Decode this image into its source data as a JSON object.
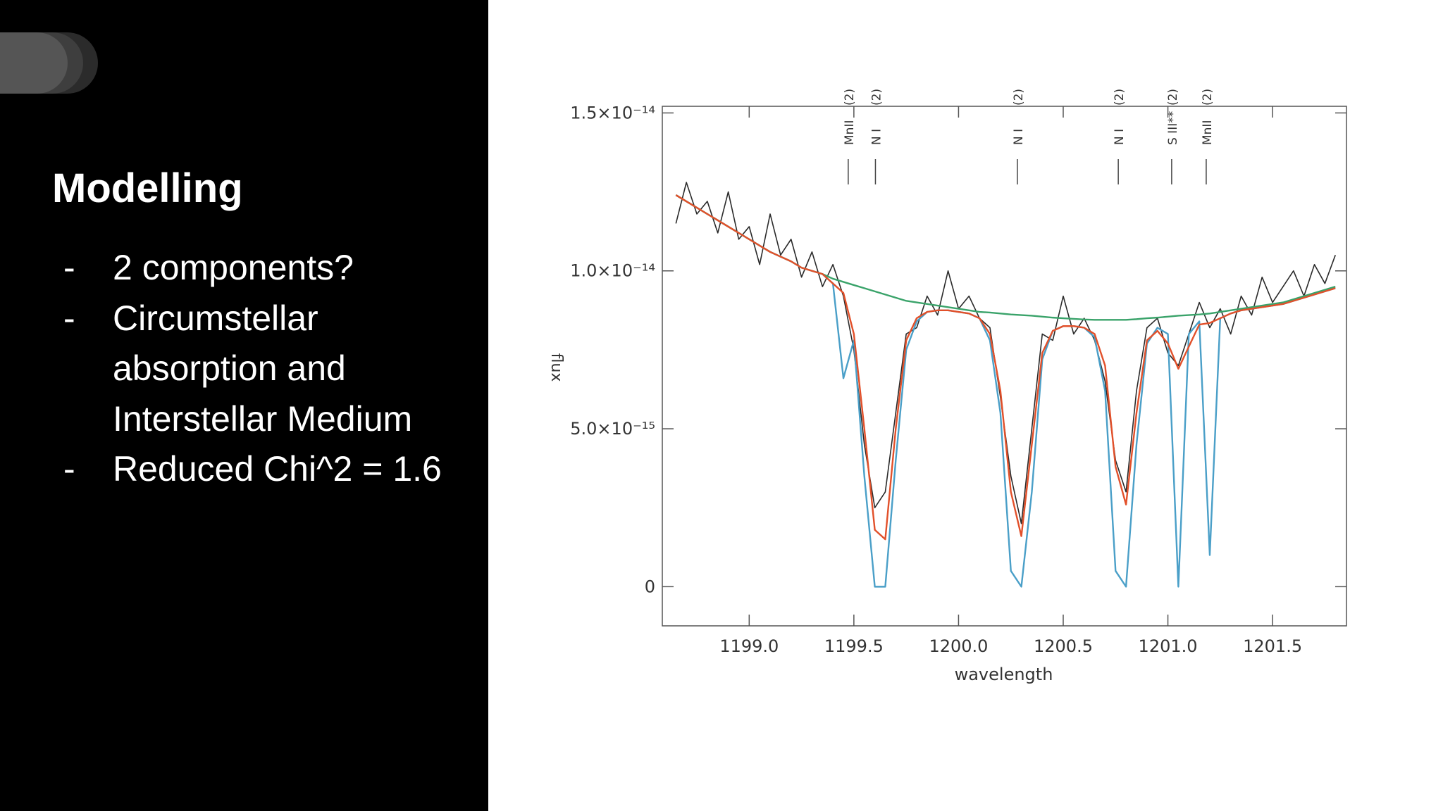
{
  "slide": {
    "title": "Modelling",
    "marker": "-",
    "bullets": [
      "2 components?",
      "Circumstellar absorption and Interstellar Medium",
      "Reduced Chi^2 = 1.6"
    ]
  },
  "chart_data": {
    "type": "line",
    "xlabel": "wavelength",
    "ylabel": "flux",
    "xlim": [
      1198.585,
      1201.853
    ],
    "ylim": [
      -1.24e-15,
      1.521e-14
    ],
    "xticks": [
      {
        "value": 1199.0,
        "label": "1199.0"
      },
      {
        "value": 1199.5,
        "label": "1199.5"
      },
      {
        "value": 1200.0,
        "label": "1200.0"
      },
      {
        "value": 1200.5,
        "label": "1200.5"
      },
      {
        "value": 1201.0,
        "label": "1201.0"
      },
      {
        "value": 1201.5,
        "label": "1201.5"
      }
    ],
    "yticks": [
      0,
      {
        "value": 5e-15,
        "label": "5.0×10⁻¹⁵"
      },
      {
        "value": 1e-14,
        "label": "1.0×10⁻¹⁴"
      },
      {
        "value": 1.5e-14,
        "label": "1.5×10⁻¹⁴"
      }
    ],
    "line_ids": [
      {
        "x": 1199.473,
        "label": "MnII",
        "note": "(2)"
      },
      {
        "x": 1199.603,
        "label": "N I",
        "note": "(2)"
      },
      {
        "x": 1200.281,
        "label": "N I",
        "note": "(2)"
      },
      {
        "x": 1200.763,
        "label": "N I",
        "note": "(2)"
      },
      {
        "x": 1201.018,
        "label": "S III**",
        "note": "(2)"
      },
      {
        "x": 1201.183,
        "label": "MnII",
        "note": "(2)"
      }
    ],
    "x": [
      1198.65,
      1198.7,
      1198.75,
      1198.8,
      1198.85,
      1198.9,
      1198.95,
      1199.0,
      1199.05,
      1199.1,
      1199.15,
      1199.2,
      1199.25,
      1199.3,
      1199.35,
      1199.4,
      1199.45,
      1199.5,
      1199.55,
      1199.6,
      1199.65,
      1199.7,
      1199.75,
      1199.8,
      1199.85,
      1199.9,
      1199.95,
      1200.0,
      1200.05,
      1200.1,
      1200.15,
      1200.2,
      1200.25,
      1200.3,
      1200.35,
      1200.4,
      1200.45,
      1200.5,
      1200.55,
      1200.6,
      1200.65,
      1200.7,
      1200.75,
      1200.8,
      1200.85,
      1200.9,
      1200.95,
      1201.0,
      1201.05,
      1201.1,
      1201.15,
      1201.2,
      1201.25,
      1201.3,
      1201.35,
      1201.4,
      1201.45,
      1201.5,
      1201.55,
      1201.6,
      1201.65,
      1201.7,
      1201.75,
      1201.8
    ],
    "series": [
      {
        "color": "#2a2a2a",
        "values": [
          1.15e-14,
          1.28e-14,
          1.18e-14,
          1.22e-14,
          1.12e-14,
          1.25e-14,
          1.1e-14,
          1.14e-14,
          1.02e-14,
          1.18e-14,
          1.05e-14,
          1.1e-14,
          9.8e-15,
          1.06e-14,
          9.5e-15,
          1.02e-14,
          9.2e-15,
          7.5e-15,
          4.5e-15,
          2.5e-15,
          3e-15,
          5.5e-15,
          8e-15,
          8.2e-15,
          9.2e-15,
          8.6e-15,
          1e-14,
          8.8e-15,
          9.2e-15,
          8.5e-15,
          8.2e-15,
          6e-15,
          3.5e-15,
          2e-15,
          5e-15,
          8e-15,
          7.8e-15,
          9.2e-15,
          8e-15,
          8.5e-15,
          7.8e-15,
          6.5e-15,
          4e-15,
          3e-15,
          6.2e-15,
          8.2e-15,
          8.5e-15,
          7.4e-15,
          7e-15,
          8e-15,
          9e-15,
          8.2e-15,
          8.8e-15,
          8e-15,
          9.2e-15,
          8.6e-15,
          9.8e-15,
          9e-15,
          9.5e-15,
          1e-14,
          9.2e-15,
          1.02e-14,
          9.6e-15,
          1.05e-14
        ]
      },
      {
        "color": "#4a9fc8",
        "values": [
          1.24e-14,
          1.22e-14,
          1.2e-14,
          1.18e-14,
          1.16e-14,
          1.14e-14,
          1.12e-14,
          1.1e-14,
          1.08e-14,
          1.06e-14,
          1.045e-14,
          1.03e-14,
          1.01e-14,
          1e-14,
          9.9e-15,
          9.6e-15,
          6.6e-15,
          7.8e-15,
          3.5e-15,
          0,
          0,
          4e-15,
          7.5e-15,
          8.4e-15,
          8.7e-15,
          8.75e-15,
          8.75e-15,
          8.7e-15,
          8.65e-15,
          8.5e-15,
          7.8e-15,
          5.5e-15,
          5e-16,
          0,
          3e-15,
          7.2e-15,
          8.1e-15,
          8.25e-15,
          8.25e-15,
          8.2e-15,
          7.9e-15,
          6.2e-15,
          5e-16,
          0,
          4.5e-15,
          7.7e-15,
          8.2e-15,
          8e-15,
          0,
          8e-15,
          8.4e-15,
          1e-15,
          8.5e-15,
          8.65e-15,
          8.75e-15,
          8.8e-15,
          8.85e-15,
          8.9e-15,
          8.95e-15,
          9.05e-15,
          9.15e-15,
          9.25e-15,
          9.35e-15,
          9.45e-15
        ]
      },
      {
        "color": "#3aa36a",
        "values": [
          1.24e-14,
          1.22e-14,
          1.2e-14,
          1.18e-14,
          1.16e-14,
          1.14e-14,
          1.12e-14,
          1.1e-14,
          1.08e-14,
          1.06e-14,
          1.045e-14,
          1.03e-14,
          1.01e-14,
          1e-14,
          9.9e-15,
          9.75e-15,
          9.65e-15,
          9.55e-15,
          9.45e-15,
          9.35e-15,
          9.25e-15,
          9.15e-15,
          9.05e-15,
          9e-15,
          8.95e-15,
          8.9e-15,
          8.85e-15,
          8.8e-15,
          8.75e-15,
          8.7e-15,
          8.68e-15,
          8.65e-15,
          8.62e-15,
          8.6e-15,
          8.58e-15,
          8.55e-15,
          8.52e-15,
          8.5e-15,
          8.48e-15,
          8.46e-15,
          8.45e-15,
          8.45e-15,
          8.45e-15,
          8.45e-15,
          8.47e-15,
          8.5e-15,
          8.52e-15,
          8.55e-15,
          8.58e-15,
          8.6e-15,
          8.62e-15,
          8.65e-15,
          8.7e-15,
          8.75e-15,
          8.8e-15,
          8.85e-15,
          8.9e-15,
          8.95e-15,
          9e-15,
          9.1e-15,
          9.2e-15,
          9.3e-15,
          9.4e-15,
          9.5e-15
        ]
      },
      {
        "color": "#e2502a",
        "values": [
          1.24e-14,
          1.22e-14,
          1.2e-14,
          1.18e-14,
          1.16e-14,
          1.14e-14,
          1.12e-14,
          1.1e-14,
          1.08e-14,
          1.06e-14,
          1.045e-14,
          1.03e-14,
          1.01e-14,
          1e-14,
          9.9e-15,
          9.6e-15,
          9.3e-15,
          8e-15,
          5e-15,
          1.8e-15,
          1.5e-15,
          5e-15,
          7.8e-15,
          8.5e-15,
          8.7e-15,
          8.75e-15,
          8.75e-15,
          8.7e-15,
          8.65e-15,
          8.5e-15,
          8e-15,
          6.2e-15,
          3e-15,
          1.6e-15,
          4.5e-15,
          7.4e-15,
          8.1e-15,
          8.25e-15,
          8.25e-15,
          8.2e-15,
          8e-15,
          7e-15,
          3.8e-15,
          2.6e-15,
          5.5e-15,
          7.8e-15,
          8.1e-15,
          7.7e-15,
          6.9e-15,
          7.6e-15,
          8.3e-15,
          8.35e-15,
          8.5e-15,
          8.65e-15,
          8.75e-15,
          8.8e-15,
          8.85e-15,
          8.9e-15,
          8.95e-15,
          9.05e-15,
          9.15e-15,
          9.25e-15,
          9.35e-15,
          9.45e-15
        ]
      }
    ]
  }
}
